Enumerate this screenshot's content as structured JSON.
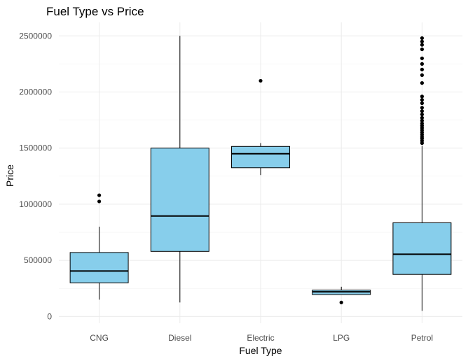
{
  "chart_data": {
    "type": "boxplot",
    "title": "Fuel Type vs Price",
    "xlabel": "Fuel Type",
    "ylabel": "Price",
    "categories": [
      "CNG",
      "Diesel",
      "Electric",
      "LPG",
      "Petrol"
    ],
    "y_ticks": [
      0,
      500000,
      1000000,
      1500000,
      2000000,
      2500000
    ],
    "y_tick_labels": [
      "0",
      "500000",
      "1000000",
      "1500000",
      "2000000",
      "2500000"
    ],
    "ylim": [
      -60000,
      2620000
    ],
    "grid": true,
    "legend": "none",
    "box_fill": "#87CEEB",
    "outline_color": "#000000",
    "boxes": [
      {
        "category": "CNG",
        "whisker_low": 150000,
        "q1": 300000,
        "median": 405000,
        "q3": 570000,
        "whisker_high": 800000,
        "outliers": [
          1025000,
          1080000
        ]
      },
      {
        "category": "Diesel",
        "whisker_low": 125000,
        "q1": 580000,
        "median": 895000,
        "q3": 1500000,
        "whisker_high": 2500000,
        "outliers": []
      },
      {
        "category": "Electric",
        "whisker_low": 1260000,
        "q1": 1325000,
        "median": 1450000,
        "q3": 1515000,
        "whisker_high": 1545000,
        "outliers": [
          2100000
        ]
      },
      {
        "category": "LPG",
        "whisker_low": 195000,
        "q1": 195000,
        "median": 220000,
        "q3": 235000,
        "whisker_high": 265000,
        "outliers": [
          125000
        ]
      },
      {
        "category": "Petrol",
        "whisker_low": 50000,
        "q1": 375000,
        "median": 555000,
        "q3": 835000,
        "whisker_high": 1520000,
        "outliers": [
          1545000,
          1565000,
          1585000,
          1600000,
          1620000,
          1640000,
          1660000,
          1680000,
          1700000,
          1720000,
          1745000,
          1770000,
          1800000,
          1830000,
          1860000,
          1900000,
          1930000,
          1960000,
          2080000,
          2150000,
          2200000,
          2250000,
          2300000,
          2380000,
          2420000,
          2450000,
          2480000
        ]
      }
    ]
  }
}
